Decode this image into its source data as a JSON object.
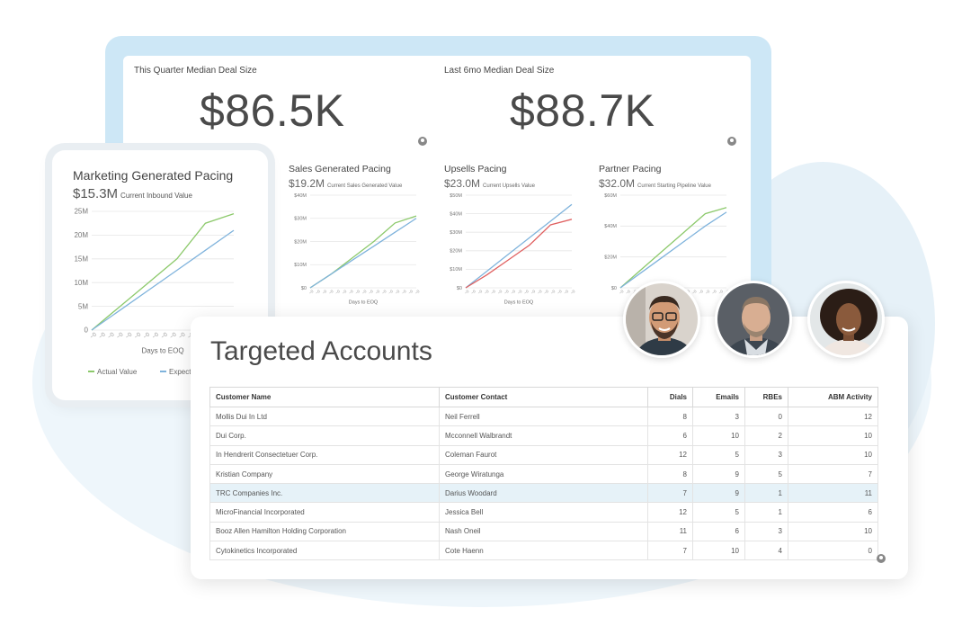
{
  "kpis": [
    {
      "title": "This Quarter Median Deal Size",
      "value": "$86.5K"
    },
    {
      "title": "Last 6mo Median Deal Size",
      "value": "$88.7K"
    }
  ],
  "marketing": {
    "title": "Marketing Generated Pacing",
    "value": "$15.3M",
    "sub": "Current Inbound Value",
    "xlabel": "Days to EOQ",
    "legend_actual": "Actual Value",
    "legend_expected": "Expect",
    "yticks": [
      "25M",
      "20M",
      "15M",
      "10M",
      "5M",
      "0"
    ]
  },
  "minis": [
    {
      "title": "Sales Generated Pacing",
      "value": "$19.2M",
      "sub": "Current Sales Generated Value",
      "yticks": [
        "$40M",
        "$30M",
        "$20M",
        "$10M",
        "$0"
      ],
      "xlabel": "Days to EOQ"
    },
    {
      "title": "Upsells Pacing",
      "value": "$23.0M",
      "sub": "Current Upsells Value",
      "yticks": [
        "$50M",
        "$40M",
        "$30M",
        "$20M",
        "$10M",
        "$0"
      ],
      "xlabel": "Days to EOQ"
    },
    {
      "title": "Partner Pacing",
      "value": "$32.0M",
      "sub": "Current Starting Pipeline Value",
      "yticks": [
        "$60M",
        "$40M",
        "$20M",
        "$0"
      ],
      "xlabel": ""
    }
  ],
  "chart_data": [
    {
      "type": "line",
      "title": "Marketing Generated Pacing",
      "xlabel": "Days to EOQ",
      "ylabel": "",
      "ylim": [
        0,
        25
      ],
      "x": [
        0,
        1,
        2,
        3,
        4,
        5
      ],
      "series": [
        {
          "name": "Actual Value",
          "values": [
            0,
            5,
            10,
            15,
            22.5,
            24.5
          ]
        },
        {
          "name": "Expect",
          "values": [
            0,
            4.2,
            8.4,
            12.6,
            16.8,
            21
          ]
        }
      ]
    },
    {
      "type": "line",
      "title": "Sales Generated Pacing",
      "xlabel": "Days to EOQ",
      "ylim": [
        0,
        40
      ],
      "x": [
        0,
        1,
        2,
        3,
        4,
        5
      ],
      "series": [
        {
          "values": [
            0,
            6,
            13,
            20,
            28,
            31
          ]
        },
        {
          "values": [
            0,
            6,
            12,
            18,
            24,
            30
          ]
        }
      ]
    },
    {
      "type": "line",
      "title": "Upsells Pacing",
      "xlabel": "Days to EOQ",
      "ylim": [
        0,
        50
      ],
      "x": [
        0,
        1,
        2,
        3,
        4,
        5
      ],
      "series": [
        {
          "values": [
            0,
            9,
            18,
            27,
            36,
            45
          ]
        },
        {
          "values": [
            0,
            7,
            15,
            23,
            34,
            37
          ]
        }
      ]
    },
    {
      "type": "line",
      "title": "Partner Pacing",
      "xlabel": "",
      "ylim": [
        0,
        60
      ],
      "x": [
        0,
        1,
        2,
        3,
        4,
        5
      ],
      "series": [
        {
          "values": [
            0,
            12,
            24,
            36,
            48,
            52
          ]
        },
        {
          "values": [
            0,
            10,
            20,
            30,
            40,
            49
          ]
        }
      ]
    }
  ],
  "colors": {
    "green": "#8cc96b",
    "blue": "#7fb3dc",
    "red": "#e06060",
    "frame": "#cde7f6"
  },
  "table": {
    "title": "Targeted Accounts",
    "headers": [
      "Customer Name",
      "Customer Contact",
      "Dials",
      "Emails",
      "RBEs",
      "ABM Activity"
    ],
    "rows": [
      [
        "Mollis Dui In Ltd",
        "Neil Ferrell",
        "8",
        "3",
        "0",
        "12"
      ],
      [
        "Dui Corp.",
        "Mcconnell Walbrandt",
        "6",
        "10",
        "2",
        "10"
      ],
      [
        "In Hendrerit Consectetuer Corp.",
        "Coleman Faurot",
        "12",
        "5",
        "3",
        "10"
      ],
      [
        "Kristian Company",
        "George Wiratunga",
        "8",
        "9",
        "5",
        "7"
      ],
      [
        "TRC Companies Inc.",
        "Darius Woodard",
        "7",
        "9",
        "1",
        "11"
      ],
      [
        "MicroFinancial Incorporated",
        "Jessica Bell",
        "12",
        "5",
        "1",
        "6"
      ],
      [
        "Booz Allen Hamilton Holding Corporation",
        "Nash Oneil",
        "11",
        "6",
        "3",
        "10"
      ],
      [
        "Cytokinetics Incorporated",
        "Cote Haenn",
        "7",
        "10",
        "4",
        "0"
      ]
    ],
    "highlight_row": 4
  }
}
